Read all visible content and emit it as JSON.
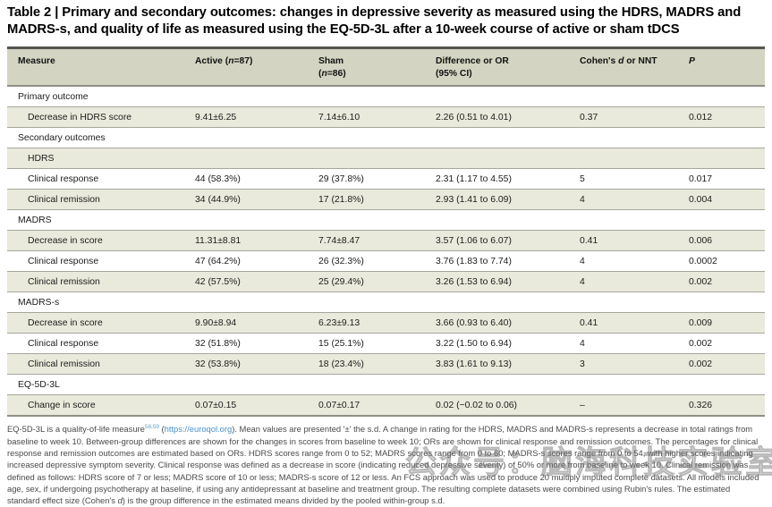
{
  "title": "Table 2 | Primary and secondary outcomes: changes in depressive severity as measured using the HDRS, MADRS and MADRS-s, and quality of life as measured using the EQ-5D-3L after a 10-week course of active or sham tDCS",
  "table": {
    "headers": [
      {
        "name": "measure",
        "lines": [
          [
            {
              "t": "Measure"
            }
          ]
        ]
      },
      {
        "name": "active",
        "lines": [
          [
            {
              "t": "Active ("
            },
            {
              "t": "n",
              "s": "i"
            },
            {
              "t": "=87)"
            }
          ]
        ]
      },
      {
        "name": "sham",
        "lines": [
          [
            {
              "t": "Sham"
            }
          ],
          [
            {
              "t": "("
            },
            {
              "t": "n",
              "s": "i"
            },
            {
              "t": "=86)"
            }
          ]
        ]
      },
      {
        "name": "difference",
        "lines": [
          [
            {
              "t": "Difference or OR"
            }
          ],
          [
            {
              "t": "(95% CI)"
            }
          ]
        ]
      },
      {
        "name": "cohens-d",
        "lines": [
          [
            {
              "t": "Cohen's "
            },
            {
              "t": "d",
              "s": "i"
            },
            {
              "t": " or NNT"
            }
          ]
        ]
      },
      {
        "name": "p-value",
        "lines": [
          [
            {
              "t": "P",
              "s": "i"
            }
          ]
        ]
      }
    ],
    "rows": [
      {
        "kind": "section",
        "level": 0,
        "shaded": false,
        "measure": "Primary outcome",
        "values": [
          "",
          "",
          "",
          "",
          ""
        ]
      },
      {
        "kind": "data",
        "level": 1,
        "shaded": true,
        "measure": "Decrease in HDRS score",
        "values": [
          "9.41±6.25",
          "7.14±6.10",
          "2.26 (0.51 to 4.01)",
          "0.37",
          "0.012"
        ]
      },
      {
        "kind": "section",
        "level": 0,
        "shaded": false,
        "measure": "Secondary outcomes",
        "values": [
          "",
          "",
          "",
          "",
          ""
        ]
      },
      {
        "kind": "subsection",
        "level": 1,
        "shaded": true,
        "measure": "HDRS",
        "values": [
          "",
          "",
          "",
          "",
          ""
        ]
      },
      {
        "kind": "data",
        "level": 1,
        "shaded": false,
        "measure": "Clinical response",
        "values": [
          "44 (58.3%)",
          "29 (37.8%)",
          "2.31 (1.17 to 4.55)",
          "5",
          "0.017"
        ]
      },
      {
        "kind": "data",
        "level": 1,
        "shaded": true,
        "measure": "Clinical remission",
        "values": [
          "34 (44.9%)",
          "17 (21.8%)",
          "2.93 (1.41 to 6.09)",
          "4",
          "0.004"
        ]
      },
      {
        "kind": "subsection",
        "level": 0,
        "shaded": false,
        "measure": "MADRS",
        "values": [
          "",
          "",
          "",
          "",
          ""
        ]
      },
      {
        "kind": "data",
        "level": 1,
        "shaded": true,
        "measure": "Decrease in score",
        "values": [
          "11.31±8.81",
          "7.74±8.47",
          "3.57 (1.06 to 6.07)",
          "0.41",
          "0.006"
        ]
      },
      {
        "kind": "data",
        "level": 1,
        "shaded": false,
        "measure": "Clinical response",
        "values": [
          "47 (64.2%)",
          "26 (32.3%)",
          "3.76 (1.83 to 7.74)",
          "4",
          "0.0002"
        ]
      },
      {
        "kind": "data",
        "level": 1,
        "shaded": true,
        "measure": "Clinical remission",
        "values": [
          "42 (57.5%)",
          "25 (29.4%)",
          "3.26 (1.53 to 6.94)",
          "4",
          "0.002"
        ]
      },
      {
        "kind": "subsection",
        "level": 0,
        "shaded": false,
        "measure": "MADRS-s",
        "values": [
          "",
          "",
          "",
          "",
          ""
        ]
      },
      {
        "kind": "data",
        "level": 1,
        "shaded": true,
        "measure": "Decrease in score",
        "values": [
          "9.90±8.94",
          "6.23±9.13",
          "3.66 (0.93 to 6.40)",
          "0.41",
          "0.009"
        ]
      },
      {
        "kind": "data",
        "level": 1,
        "shaded": false,
        "measure": "Clinical response",
        "values": [
          "32 (51.8%)",
          "15 (25.1%)",
          "3.22 (1.50 to 6.94)",
          "4",
          "0.002"
        ]
      },
      {
        "kind": "data",
        "level": 1,
        "shaded": true,
        "measure": "Clinical remission",
        "values": [
          "32 (53.8%)",
          "18 (23.4%)",
          "3.83 (1.61 to 9.13)",
          "3",
          "0.002"
        ]
      },
      {
        "kind": "subsection",
        "level": 0,
        "shaded": false,
        "measure": "EQ-5D-3L",
        "values": [
          "",
          "",
          "",
          "",
          ""
        ]
      },
      {
        "kind": "data",
        "level": 1,
        "shaded": true,
        "measure": "Change in score",
        "values": [
          "0.07±0.15",
          "0.07±0.17",
          "0.02 (−0.02 to 0.06)",
          "–",
          "0.326"
        ]
      }
    ]
  },
  "footnote": {
    "segments": [
      {
        "t": "EQ-5D-3L is a quality-of-life measure"
      },
      {
        "t": "58,59",
        "s": "sup"
      },
      {
        "t": " ("
      },
      {
        "t": "https://euroqol.org",
        "s": "link"
      },
      {
        "t": "). Mean values are presented '±' the s.d. A change in rating for the HDRS, MADRS and MADRS-s represents a decrease in total ratings from baseline to week 10. Between-group differences are shown for the changes in scores from baseline to week 10; ORs are shown for clinical response and remission outcomes. The percentages for clinical response and remission outcomes are estimated based on ORs. HDRS scores range from 0 to 52; MADRS scores range from 0 to 60; MADRS-s scores range from 0 to 54, with higher scores indicating increased depressive symptom severity. Clinical response was defined as a decrease in score (indicating reduced depressive severity) of 50% or more from baseline to week 10. Clinical remission was defined as follows: HDRS score of 7 or less; MADRS score of 10 or less; MADRS-s score of 12 or less. An FCS approach was used to produce 20 multiply imputed complete datasets. All models included age, sex, if undergoing psychotherapy at baseline, if using any antidepressant at baseline and treatment group. The resulting complete datasets were combined using Rubin's rules. The estimated standard effect size (Cohen's "
      },
      {
        "t": "d",
        "s": "i"
      },
      {
        "t": ") is the group difference in the estimated means divided by the pooled within-group s.d."
      }
    ]
  },
  "watermark": "公众号：脑海科技实验室",
  "colors": {
    "header_bg": "#d3d5c2",
    "shaded_row_bg": "#e9eadb",
    "rule_heavy": "#55554f",
    "rule_light": "#a6a69c",
    "link_blue": "#4a90c9",
    "footnote_text": "#4a4a4a"
  }
}
